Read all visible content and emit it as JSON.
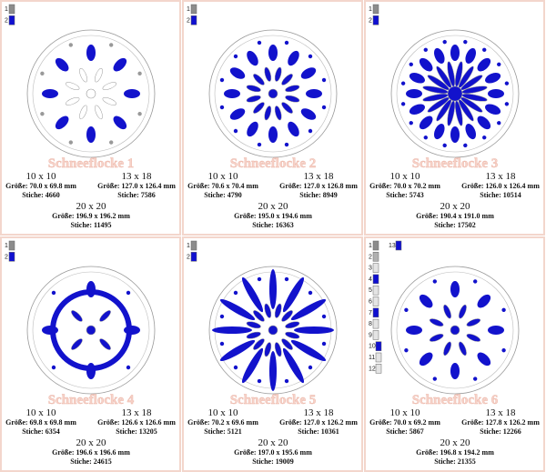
{
  "cards": [
    {
      "title": "Schneeflocke 1",
      "swatches": [
        {
          "label": "1",
          "color": "#8c8c8c"
        },
        {
          "label": "2",
          "color": "#1010d0"
        }
      ],
      "sizes": [
        {
          "name": "10 x 10",
          "size": "Größe: 70.0 x 69.8 mm",
          "stitches": "Stiche: 4660"
        },
        {
          "name": "13 x 18",
          "size": "Größe: 127.0 x 126.4 mm",
          "stitches": "Stiche: 7586"
        },
        {
          "name": "20 x 20",
          "size": "Größe: 196.9 x 196.2 mm",
          "stitches": "Stiche: 11495"
        }
      ]
    },
    {
      "title": "Schneeflocke 2",
      "swatches": [
        {
          "label": "1",
          "color": "#8c8c8c"
        },
        {
          "label": "2",
          "color": "#1010d0"
        }
      ],
      "sizes": [
        {
          "name": "10 x 10",
          "size": "Größe: 70.6 x 70.4 mm",
          "stitches": "Stiche: 4790"
        },
        {
          "name": "13 x 18",
          "size": "Größe: 127.0 x 126.8 mm",
          "stitches": "Stiche: 8949"
        },
        {
          "name": "20 x 20",
          "size": "Größe: 195.0 x 194.6 mm",
          "stitches": "Stiche: 16363"
        }
      ]
    },
    {
      "title": "Schneeflocke 3",
      "swatches": [
        {
          "label": "1",
          "color": "#8c8c8c"
        },
        {
          "label": "2",
          "color": "#1010d0"
        }
      ],
      "sizes": [
        {
          "name": "10 x 10",
          "size": "Größe: 70.0 x 70.2 mm",
          "stitches": "Stiche: 5743"
        },
        {
          "name": "13 x 18",
          "size": "Größe: 126.0 x 126.4 mm",
          "stitches": "Stiche: 10514"
        },
        {
          "name": "20 x 20",
          "size": "Größe: 190.4 x 191.0 mm",
          "stitches": "Stiche: 17502"
        }
      ]
    },
    {
      "title": "Schneeflocke 4",
      "swatches": [
        {
          "label": "1",
          "color": "#8c8c8c"
        },
        {
          "label": "2",
          "color": "#1010d0"
        }
      ],
      "sizes": [
        {
          "name": "10 x 10",
          "size": "Größe: 69.8 x 69.8 mm",
          "stitches": "Stiche: 6354"
        },
        {
          "name": "13 x 18",
          "size": "Größe: 126.6 x 126.6 mm",
          "stitches": "Stiche: 13205"
        },
        {
          "name": "20 x 20",
          "size": "Größe: 196.6 x 196.6 mm",
          "stitches": "Stiche: 24615"
        }
      ]
    },
    {
      "title": "Schneeflocke 5",
      "swatches": [
        {
          "label": "1",
          "color": "#8c8c8c"
        },
        {
          "label": "2",
          "color": "#1010d0"
        }
      ],
      "sizes": [
        {
          "name": "10 x 10",
          "size": "Größe: 70.2 x 69.6 mm",
          "stitches": "Stiche: 5121"
        },
        {
          "name": "13 x 18",
          "size": "Größe: 127.0 x 126.2 mm",
          "stitches": "Stiche: 10361"
        },
        {
          "name": "20 x 20",
          "size": "Größe: 197.0 x 195.6 mm",
          "stitches": "Stiche: 19009"
        }
      ]
    },
    {
      "title": "Schneeflocke 6",
      "swatches": [
        {
          "label": "1",
          "color": "#8c8c8c"
        },
        {
          "label": "2",
          "color": "#b0b0b0"
        },
        {
          "label": "3",
          "color": "#e4e4e4"
        },
        {
          "label": "4",
          "color": "#1010d0"
        },
        {
          "label": "5",
          "color": "#e4e4e4"
        },
        {
          "label": "6",
          "color": "#e4e4e4"
        },
        {
          "label": "7",
          "color": "#1010d0"
        },
        {
          "label": "8",
          "color": "#e4e4e4"
        },
        {
          "label": "9",
          "color": "#e4e4e4"
        },
        {
          "label": "10",
          "color": "#1010d0"
        },
        {
          "label": "11",
          "color": "#e4e4e4"
        },
        {
          "label": "12",
          "color": "#e4e4e4"
        },
        {
          "label": "13",
          "color": "#1010d0"
        }
      ],
      "sizes": [
        {
          "name": "10 x 10",
          "size": "Größe: 70.0 x 69.2 mm",
          "stitches": "Stiche: 5867"
        },
        {
          "name": "13 x 18",
          "size": "Größe: 127.8 x 126.2 mm",
          "stitches": "Stiche: 12266"
        },
        {
          "name": "20 x 20",
          "size": "Größe: 196.8 x 194.2 mm",
          "stitches": "Stiche: 21355"
        }
      ]
    }
  ]
}
